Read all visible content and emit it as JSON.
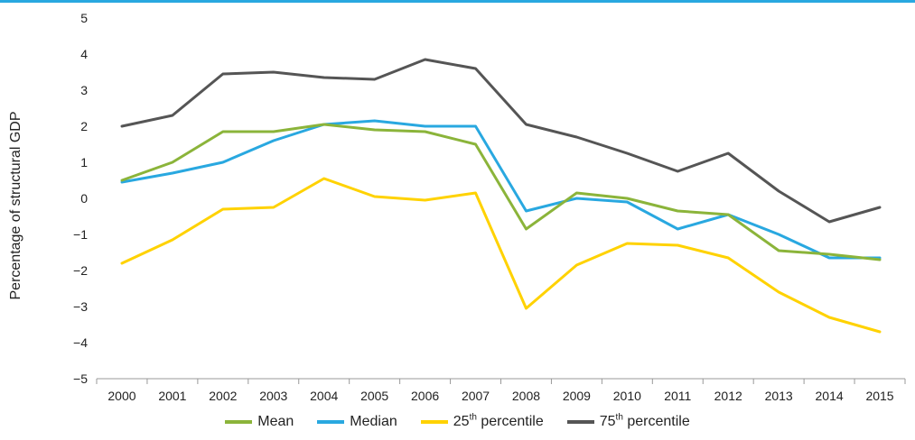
{
  "chart_data": {
    "type": "line",
    "ylabel": "Percentage of structural GDP",
    "ylim": [
      -5,
      5
    ],
    "yticks": [
      "5",
      "4",
      "3",
      "2",
      "1",
      "0",
      "−1",
      "−2",
      "−3",
      "−4",
      "−5"
    ],
    "ytick_values": [
      5,
      4,
      3,
      2,
      1,
      0,
      -1,
      -2,
      -3,
      -4,
      -5
    ],
    "categories": [
      "2000",
      "2001",
      "2002",
      "2003",
      "2004",
      "2005",
      "2006",
      "2007",
      "2008",
      "2009",
      "2010",
      "2011",
      "2012",
      "2013",
      "2014",
      "2015"
    ],
    "series": [
      {
        "name": "Mean",
        "color": "#8bb43a",
        "values": [
          0.5,
          1.0,
          1.85,
          1.85,
          2.05,
          1.9,
          1.85,
          1.5,
          -0.85,
          0.15,
          0.0,
          -0.35,
          -0.45,
          -1.45,
          -1.55,
          -1.7
        ]
      },
      {
        "name": "Median",
        "color": "#29a8e0",
        "values": [
          0.45,
          0.7,
          1.0,
          1.6,
          2.05,
          2.15,
          2.0,
          2.0,
          -0.35,
          0.0,
          -0.1,
          -0.85,
          -0.45,
          -1.0,
          -1.65,
          -1.65
        ]
      },
      {
        "name": "25th percentile",
        "name_base": "25",
        "name_sup": "th",
        "name_rest": " percentile",
        "color": "#ffd200",
        "values": [
          -1.8,
          -1.15,
          -0.3,
          -0.25,
          0.55,
          0.05,
          -0.05,
          0.15,
          -3.05,
          -1.85,
          -1.25,
          -1.3,
          -1.65,
          -2.6,
          -3.3,
          -3.7
        ]
      },
      {
        "name": "75th percentile",
        "name_base": "75",
        "name_sup": "th",
        "name_rest": " percentile",
        "color": "#555555",
        "values": [
          2.0,
          2.3,
          3.45,
          3.5,
          3.35,
          3.3,
          3.85,
          3.6,
          2.05,
          1.7,
          1.25,
          0.75,
          1.25,
          0.2,
          -0.65,
          -0.25
        ]
      }
    ],
    "grid": false,
    "legend": "bottom-center"
  },
  "style": {
    "accent": "#29a8e0",
    "axis": "#999999"
  }
}
